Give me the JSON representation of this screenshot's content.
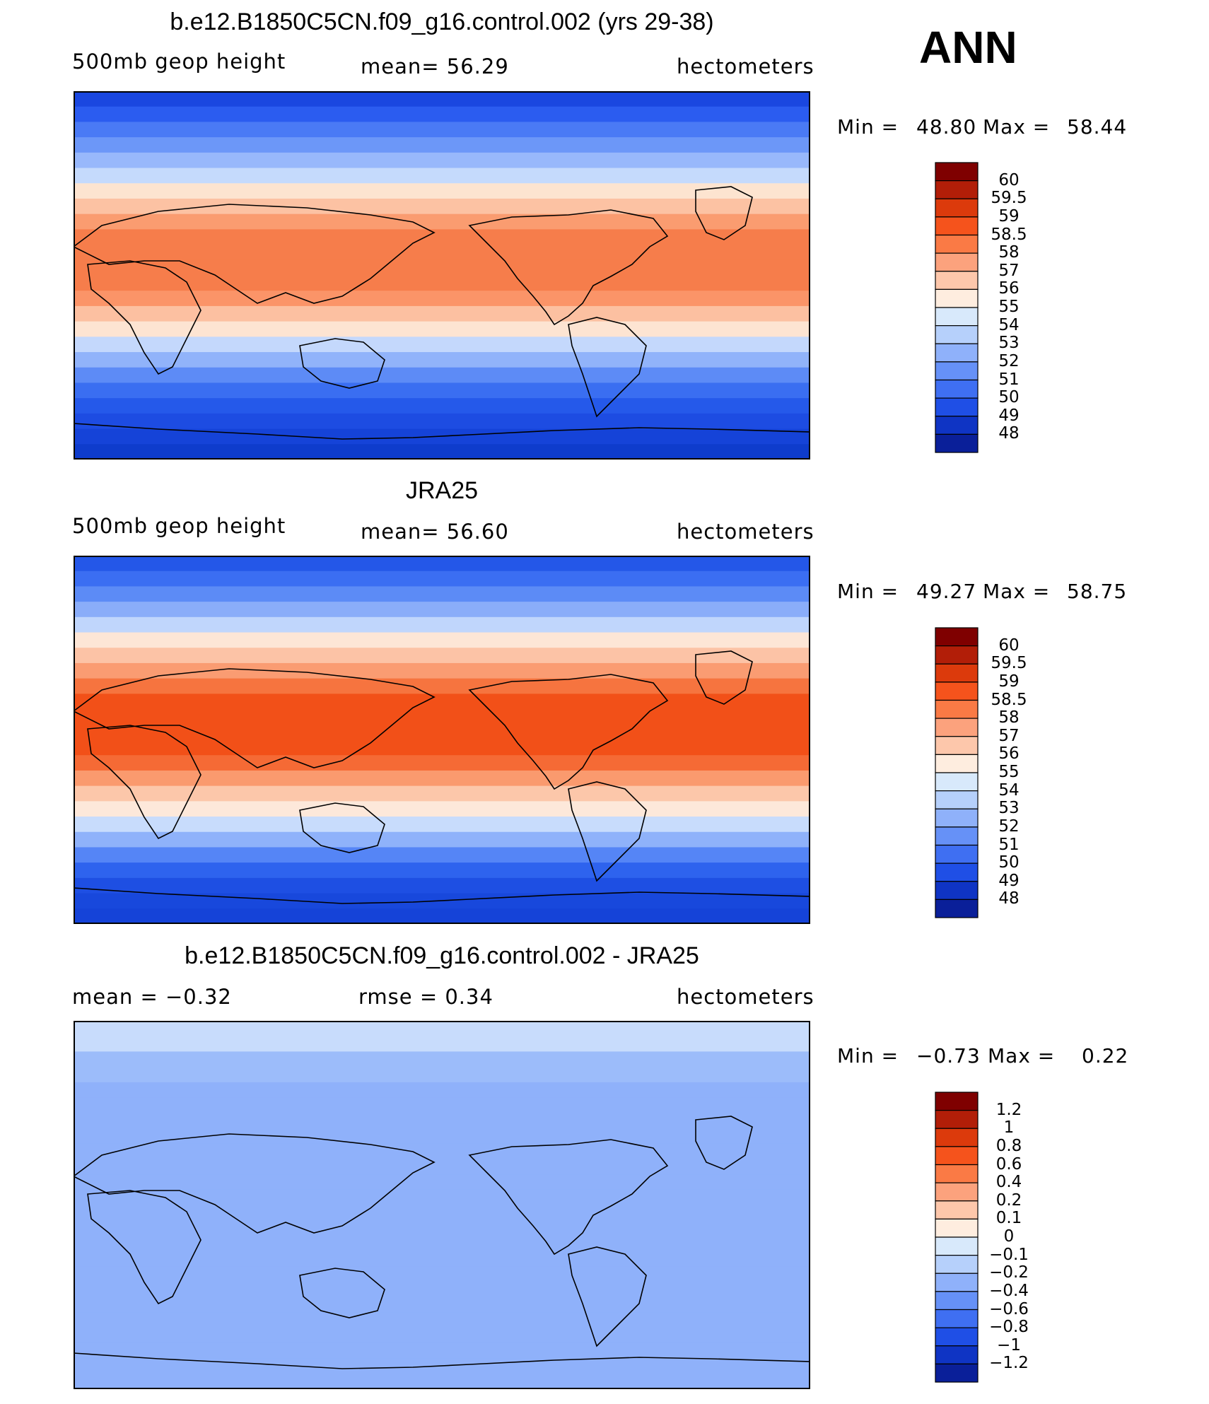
{
  "season": "ANN",
  "panels": [
    {
      "title": "b.e12.B1850C5CN.f09_g16.control.002 (yrs 29-38)",
      "left_label": "500mb geop height",
      "center_label": "mean=   56.29",
      "right_label": "hectometers",
      "min_label": "Min =",
      "min_value": "48.80",
      "max_label": "Max =",
      "max_value": "58.44",
      "colorbar": {
        "labels": [
          "60",
          "59.5",
          "59",
          "58.5",
          "58",
          "57",
          "56",
          "55",
          "54",
          "53",
          "52",
          "51",
          "50",
          "49",
          "48"
        ],
        "colors": [
          "#7f0000",
          "#b21e08",
          "#dc3a0c",
          "#f5531c",
          "#fa7a45",
          "#fca27d",
          "#fdc7ab",
          "#feeddf",
          "#d8e9fb",
          "#b6d0fb",
          "#8fb1fa",
          "#6691f7",
          "#3f6ff2",
          "#1f4fe6",
          "#0f34c4",
          "#0a1f99"
        ]
      },
      "bands": [
        "#1a47e0",
        "#2b5cf0",
        "#4a7af5",
        "#6c97f8",
        "#98b8fb",
        "#c5dafc",
        "#fde4d0",
        "#fcc2a3",
        "#fa9c70",
        "#f67d4b",
        "#f67d4b",
        "#f67d4b",
        "#f67d4b",
        "#fb9468",
        "#fcc0a1",
        "#fde4d2",
        "#c4d8fc",
        "#91b3fa",
        "#5d8bf6",
        "#3a6ef1",
        "#2559ea",
        "#1d4ce2",
        "#1543d8",
        "#0e3ccc"
      ]
    },
    {
      "title": "JRA25",
      "left_label": "500mb geop height",
      "center_label": "mean=   56.60",
      "right_label": "hectometers",
      "min_label": "Min =",
      "min_value": "49.27",
      "max_label": "Max =",
      "max_value": "58.75",
      "colorbar": {
        "labels": [
          "60",
          "59.5",
          "59",
          "58.5",
          "58",
          "57",
          "56",
          "55",
          "54",
          "53",
          "52",
          "51",
          "50",
          "49",
          "48"
        ],
        "colors": [
          "#7f0000",
          "#b21e08",
          "#dc3a0c",
          "#f5531c",
          "#fa7a45",
          "#fca27d",
          "#fdc7ab",
          "#feeddf",
          "#d8e9fb",
          "#b6d0fb",
          "#8fb1fa",
          "#6691f7",
          "#3f6ff2",
          "#1f4fe6",
          "#0f34c4",
          "#0a1f99"
        ]
      },
      "bands": [
        "#2457e8",
        "#3b6ef2",
        "#5c8bf6",
        "#8aadf9",
        "#c0d6fc",
        "#fde6d6",
        "#fcc3a6",
        "#fa9c72",
        "#f6743f",
        "#f25018",
        "#f25018",
        "#f25018",
        "#f25018",
        "#f56a35",
        "#fa9a6e",
        "#fcc7aa",
        "#fde8da",
        "#c8dcfc",
        "#8fb2fa",
        "#5585f6",
        "#2e63ee",
        "#1e4fe3",
        "#1848dc",
        "#1543d8"
      ]
    },
    {
      "title": "b.e12.B1850C5CN.f09_g16.control.002 - JRA25",
      "left_label": "mean =   −0.32",
      "center_label": "rmse =    0.34",
      "right_label": "hectometers",
      "min_label": "Min =",
      "min_value": "−0.73",
      "max_label": "Max =",
      "max_value": "0.22",
      "colorbar": {
        "labels": [
          "1.2",
          "1",
          "0.8",
          "0.6",
          "0.4",
          "0.2",
          "0.1",
          "0",
          "−0.1",
          "−0.2",
          "−0.4",
          "−0.6",
          "−0.8",
          "−1",
          "−1.2"
        ],
        "colors": [
          "#7f0000",
          "#b21e08",
          "#dc3a0c",
          "#f5531c",
          "#fa7a45",
          "#fca27d",
          "#fdc7ab",
          "#feeddf",
          "#d8e9fb",
          "#b6d0fb",
          "#8fb1fa",
          "#6691f7",
          "#3f6ff2",
          "#1f4fe6",
          "#0f34c4",
          "#0a1f99"
        ]
      },
      "bands": [
        "#c8dcfc",
        "#c8dcfc",
        "#9cbcfa",
        "#9cbcfa",
        "#8fb1fa",
        "#8fb1fa",
        "#8fb1fa",
        "#8fb1fa",
        "#8fb1fa",
        "#8fb1fa",
        "#8fb1fa",
        "#8fb1fa",
        "#8fb1fa",
        "#8fb1fa",
        "#8fb1fa",
        "#8fb1fa",
        "#8fb1fa",
        "#8fb1fa",
        "#8fb1fa",
        "#8fb1fa",
        "#8fb1fa",
        "#8fb1fa",
        "#8fb1fa",
        "#8fb1fa"
      ]
    }
  ]
}
